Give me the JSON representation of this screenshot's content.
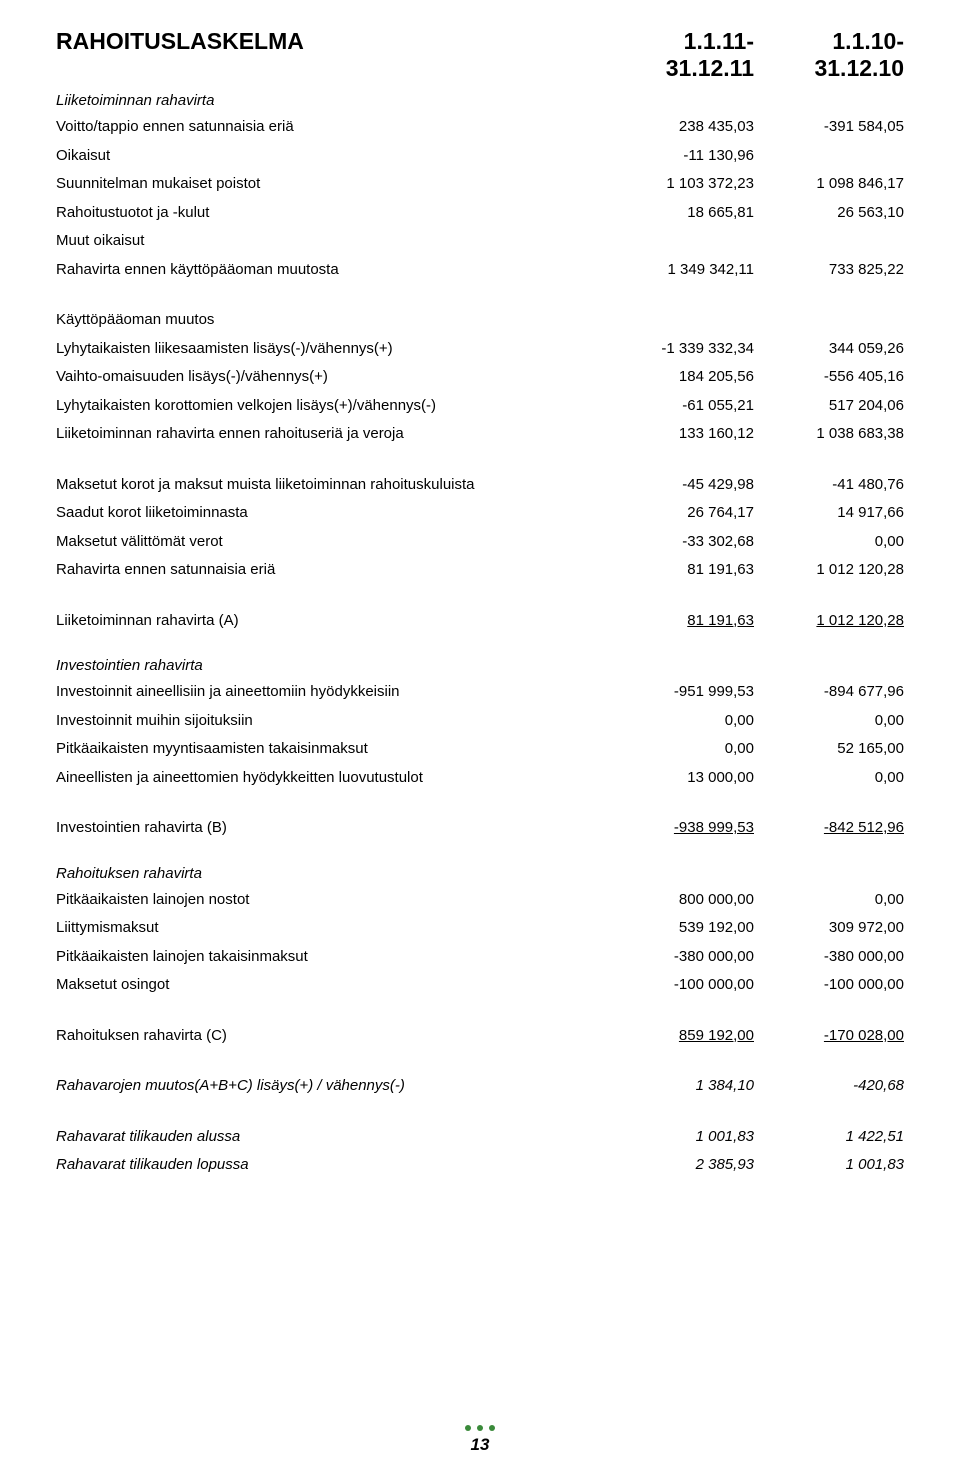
{
  "header": {
    "title": "RAHOITUSLASKELMA",
    "col1": "1.1.11-31.12.11",
    "col2": "1.1.10-31.12.10"
  },
  "secA": {
    "title": "Liiketoiminnan rahavirta",
    "rows": [
      {
        "label": "Voitto/tappio ennen satunnaisia eriä",
        "v1": "238 435,03",
        "v2": "-391 584,05"
      },
      {
        "label": "Oikaisut",
        "v1": "-11 130,96",
        "v2": ""
      },
      {
        "label": "Suunnitelman mukaiset poistot",
        "v1": "1 103 372,23",
        "v2": "1 098 846,17"
      },
      {
        "label": "Rahoitustuotot ja -kulut",
        "v1": "18 665,81",
        "v2": "26 563,10"
      },
      {
        "label": "Muut oikaisut",
        "v1": "",
        "v2": ""
      },
      {
        "label": "Rahavirta ennen käyttöpääoman muutosta",
        "v1": "1 349 342,11",
        "v2": "733 825,22"
      }
    ]
  },
  "secB": {
    "title": "Käyttöpääoman muutos",
    "rows": [
      {
        "label": "Lyhytaikaisten liikesaamisten lisäys(-)/vähennys(+)",
        "v1": "-1 339 332,34",
        "v2": "344 059,26"
      },
      {
        "label": "Vaihto-omaisuuden lisäys(-)/vähennys(+)",
        "v1": "184 205,56",
        "v2": "-556 405,16"
      },
      {
        "label": "Lyhytaikaisten korottomien velkojen lisäys(+)/vähennys(-)",
        "v1": "-61 055,21",
        "v2": "517 204,06"
      },
      {
        "label": "Liiketoiminnan rahavirta ennen rahoituseriä ja veroja",
        "v1": "133 160,12",
        "v2": "1 038 683,38"
      }
    ]
  },
  "secC": {
    "rows": [
      {
        "label": "Maksetut korot ja maksut muista liiketoiminnan rahoituskuluista",
        "v1": "-45 429,98",
        "v2": "-41 480,76"
      },
      {
        "label": "Saadut korot liiketoiminnasta",
        "v1": "26 764,17",
        "v2": "14 917,66"
      },
      {
        "label": "Maksetut välittömät verot",
        "v1": "-33 302,68",
        "v2": "0,00"
      },
      {
        "label": "Rahavirta ennen satunnaisia eriä",
        "v1": "81 191,63",
        "v2": "1 012 120,28"
      }
    ]
  },
  "secD": {
    "rows": [
      {
        "label": "Liiketoiminnan rahavirta (A)",
        "v1": "81 191,63",
        "v2": "1 012 120,28",
        "underline": true
      }
    ]
  },
  "secE": {
    "title": "Investointien rahavirta",
    "rows": [
      {
        "label": "Investoinnit aineellisiin ja aineettomiin hyödykkeisiin",
        "v1": "-951 999,53",
        "v2": "-894 677,96"
      },
      {
        "label": "Investoinnit muihin sijoituksiin",
        "v1": "0,00",
        "v2": "0,00"
      },
      {
        "label": "Pitkäaikaisten myyntisaamisten takaisinmaksut",
        "v1": "0,00",
        "v2": "52 165,00"
      },
      {
        "label": "Aineellisten ja aineettomien hyödykkeitten luovutustulot",
        "v1": "13 000,00",
        "v2": "0,00"
      }
    ]
  },
  "secF": {
    "rows": [
      {
        "label": "Investointien rahavirta (B)",
        "v1": "-938 999,53",
        "v2": "-842 512,96",
        "underline": true
      }
    ]
  },
  "secG": {
    "title": "Rahoituksen rahavirta",
    "rows": [
      {
        "label": "Pitkäaikaisten lainojen nostot",
        "v1": "800 000,00",
        "v2": "0,00"
      },
      {
        "label": "Liittymismaksut",
        "v1": "539 192,00",
        "v2": "309 972,00"
      },
      {
        "label": "Pitkäaikaisten lainojen takaisinmaksut",
        "v1": "-380 000,00",
        "v2": "-380 000,00"
      },
      {
        "label": "Maksetut osingot",
        "v1": "-100 000,00",
        "v2": "-100 000,00"
      }
    ]
  },
  "secH": {
    "rows": [
      {
        "label": "Rahoituksen rahavirta (C)",
        "v1": "859 192,00",
        "v2": "-170 028,00",
        "underline": true
      }
    ]
  },
  "secI": {
    "rows": [
      {
        "label": "Rahavarojen muutos(A+B+C) lisäys(+) / vähennys(-)",
        "v1": "1 384,10",
        "v2": "-420,68",
        "italic": true
      }
    ]
  },
  "secJ": {
    "rows": [
      {
        "label": "Rahavarat tilikauden alussa",
        "v1": "1 001,83",
        "v2": "1 422,51",
        "italic": true
      },
      {
        "label": "Rahavarat tilikauden lopussa",
        "v1": "2 385,93",
        "v2": "1 001,83",
        "italic": true
      }
    ]
  },
  "footer": {
    "page": "13",
    "dot_color": "#3a8a3a"
  }
}
